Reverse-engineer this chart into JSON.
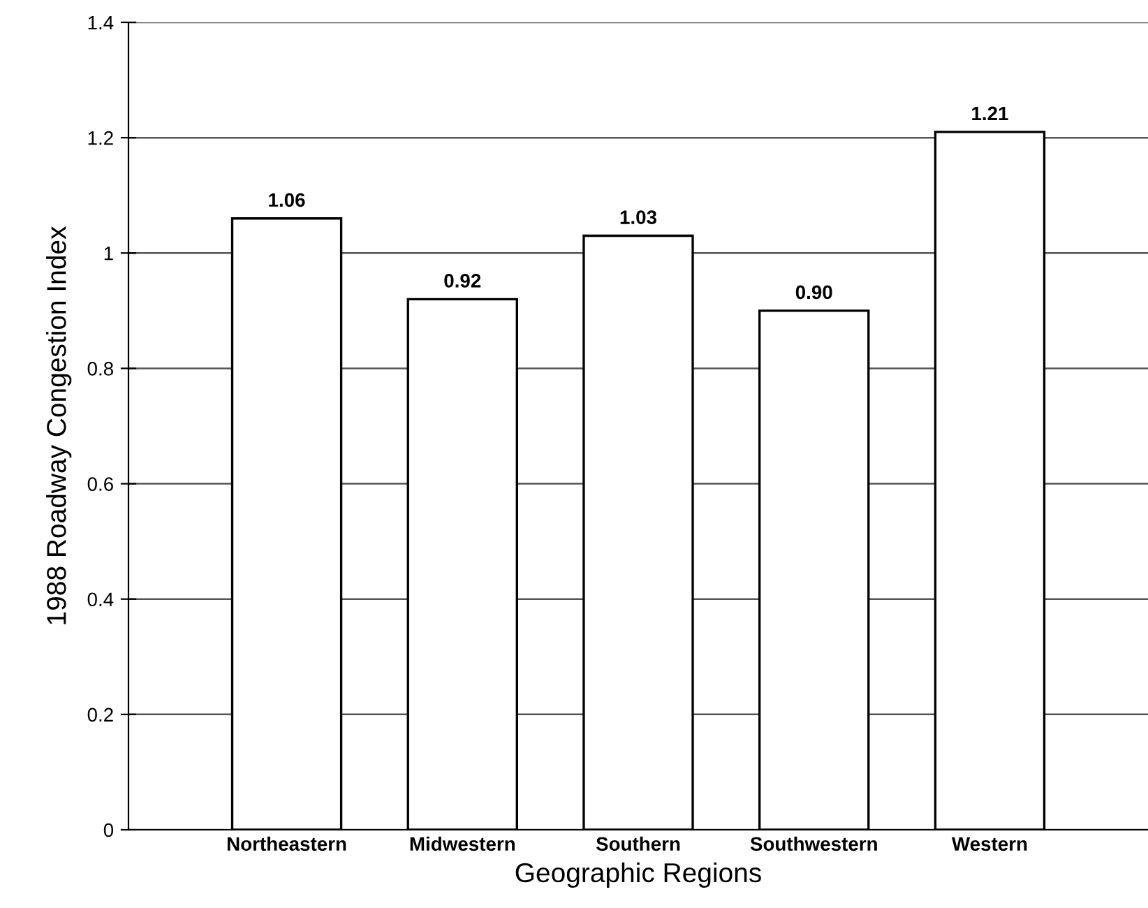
{
  "chart_data": {
    "type": "bar",
    "xlabel": "Geographic Regions",
    "ylabel": "1988 Roadway Congestion Index",
    "categories": [
      "Northeastern",
      "Midwestern",
      "Southern",
      "Southwestern",
      "Western"
    ],
    "values": [
      1.06,
      0.92,
      1.03,
      0.9,
      1.21
    ],
    "value_labels": [
      "1.06",
      "0.92",
      "1.03",
      "0.90",
      "1.21"
    ],
    "color": "#ffffff",
    "ylim": [
      0,
      1.4
    ],
    "yticks": [
      0,
      0.2,
      0.4,
      0.6,
      0.8,
      1,
      1.2,
      1.4
    ],
    "grid": "y",
    "legend": false
  }
}
